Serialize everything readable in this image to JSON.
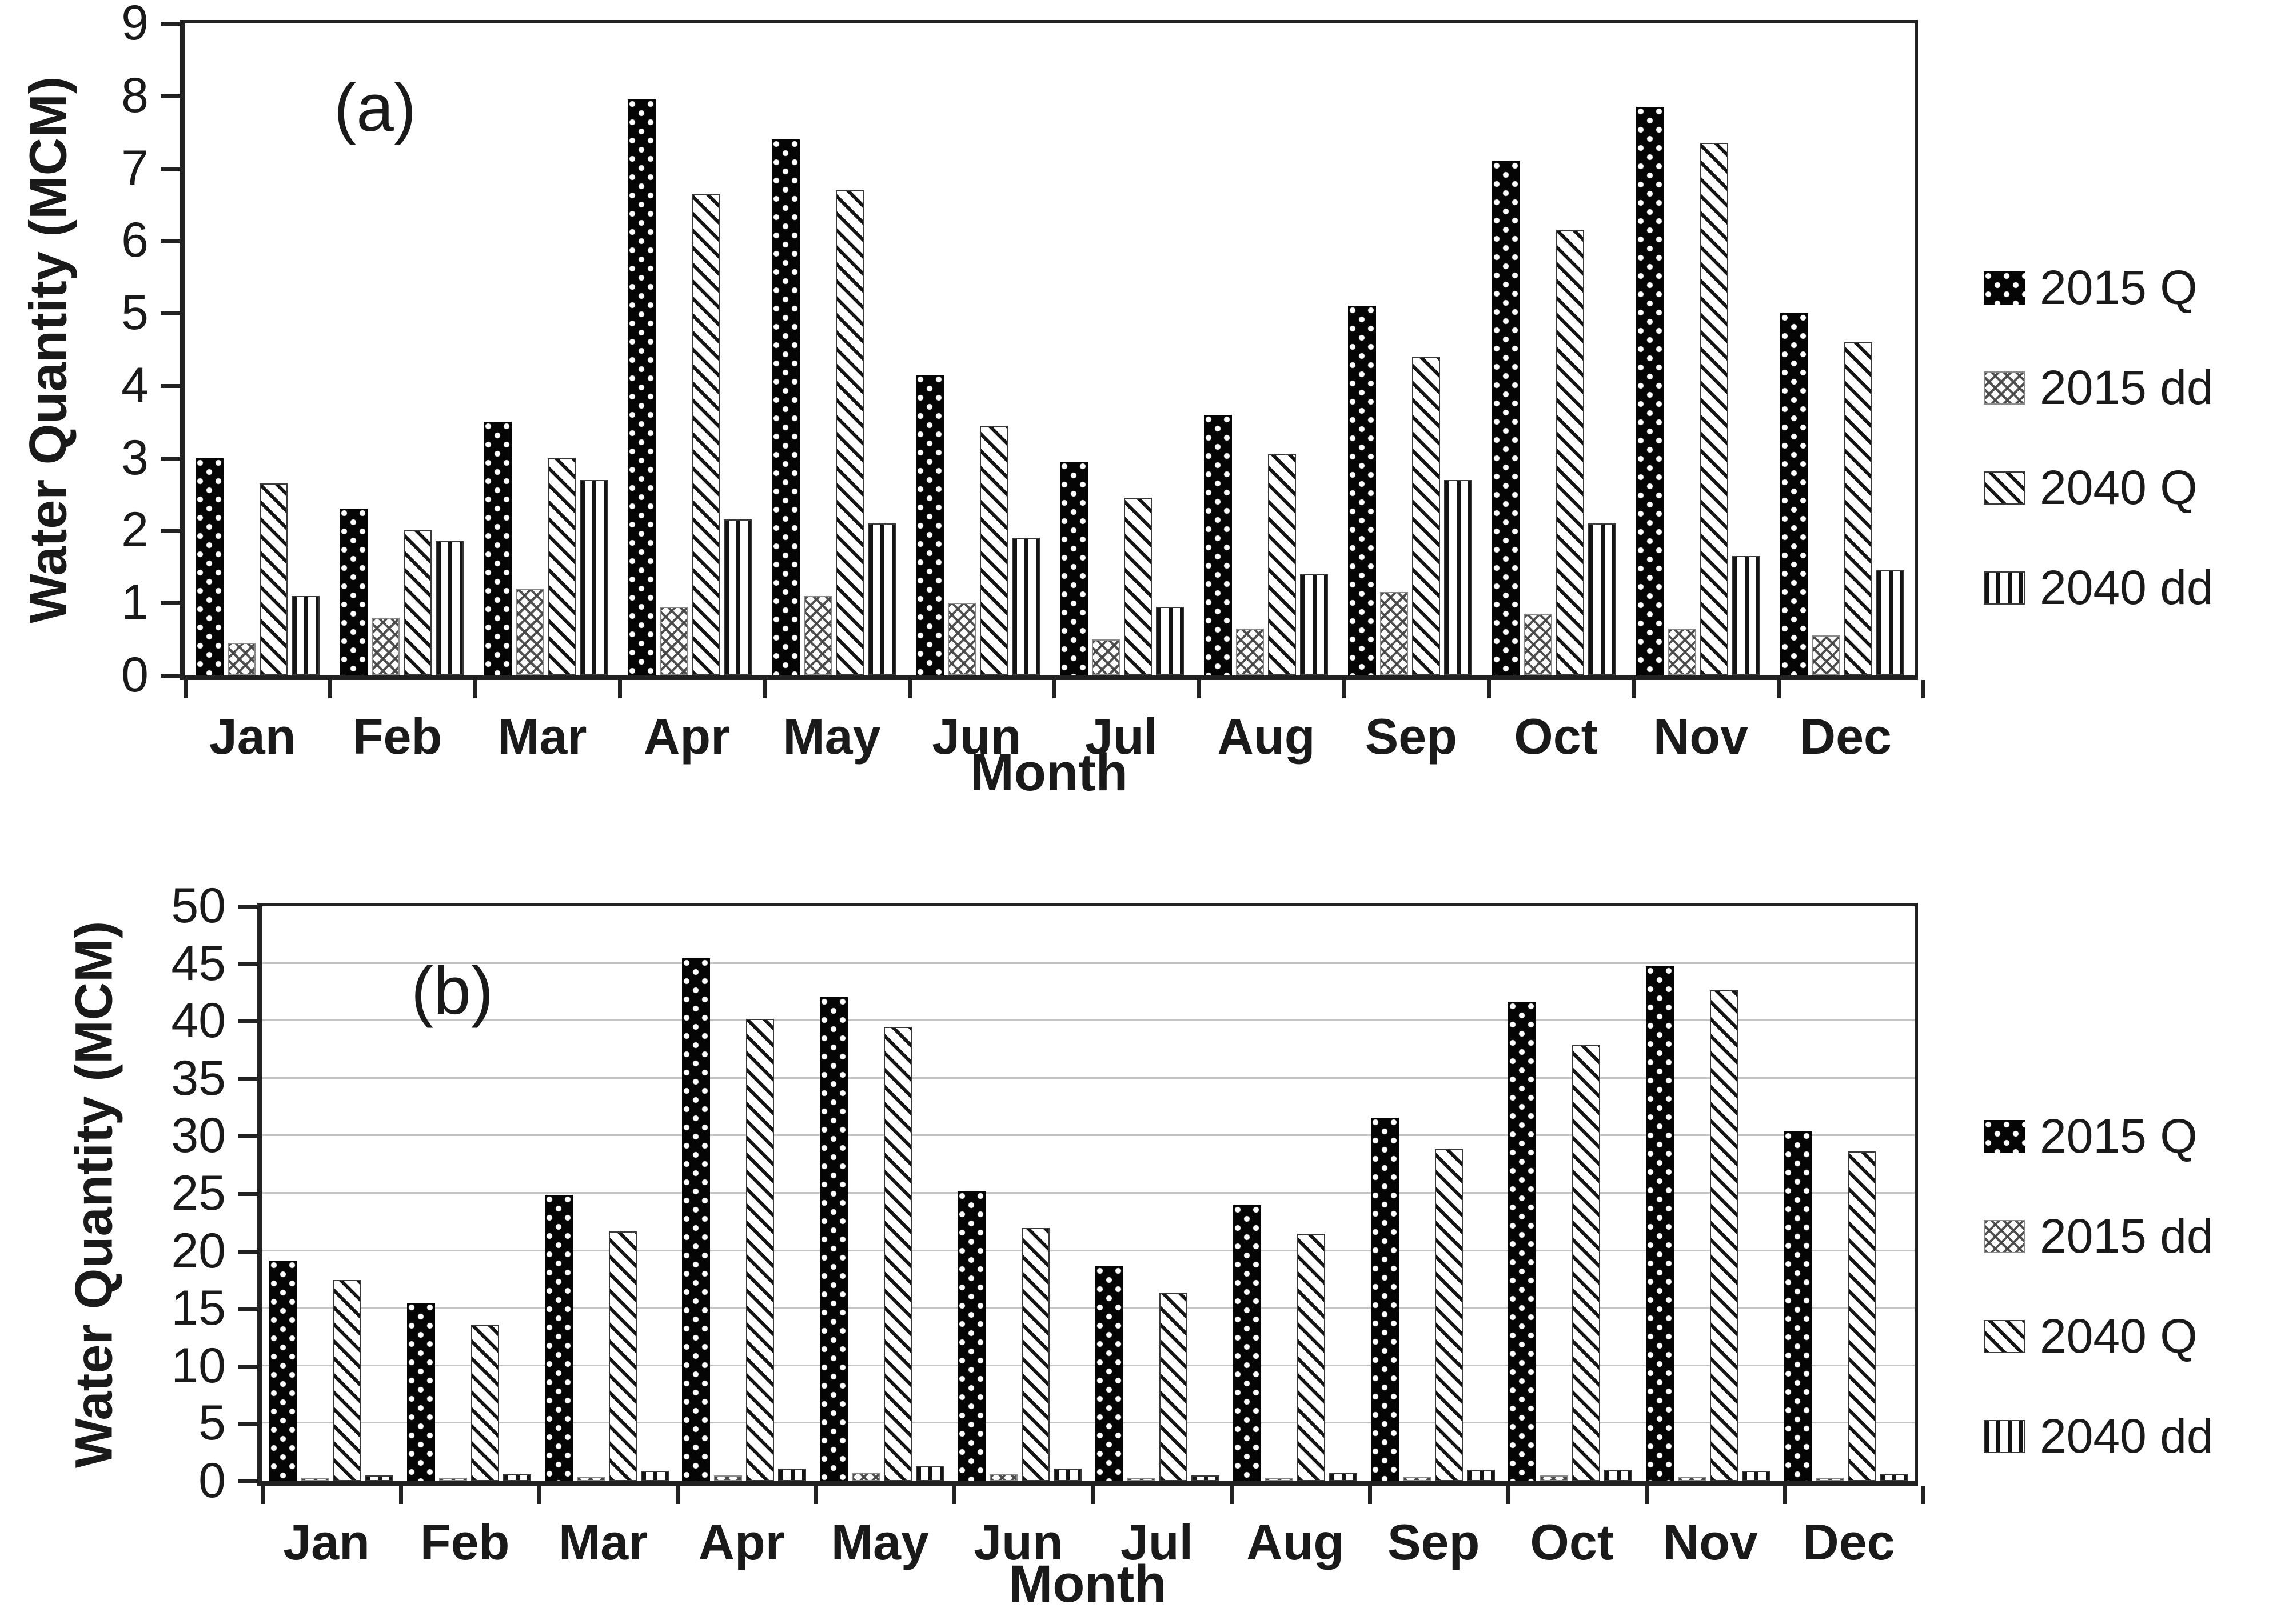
{
  "chart_data": [
    {
      "type": "bar",
      "panel_label": "(a)",
      "xlabel": "Month",
      "ylabel": "Water Quantity (MCM)",
      "ylim": [
        0,
        9
      ],
      "ytick_step": 1,
      "grid": false,
      "legend_position": "right",
      "categories": [
        "Jan",
        "Feb",
        "Mar",
        "Apr",
        "May",
        "Jun",
        "Jul",
        "Aug",
        "Sep",
        "Oct",
        "Nov",
        "Dec"
      ],
      "series": [
        {
          "name": "2015 Q",
          "pattern": "black-with-white-dots",
          "values": [
            3.0,
            2.3,
            3.5,
            7.95,
            7.4,
            4.15,
            2.95,
            3.6,
            5.1,
            7.1,
            7.85,
            5.0
          ]
        },
        {
          "name": "2015 dd",
          "pattern": "gray-crosshatch",
          "values": [
            0.45,
            0.8,
            1.2,
            0.95,
            1.1,
            1.0,
            0.5,
            0.65,
            1.15,
            0.85,
            0.65,
            0.55
          ]
        },
        {
          "name": "2040 Q",
          "pattern": "diagonal-stripes",
          "values": [
            2.65,
            2.0,
            3.0,
            6.65,
            6.7,
            3.45,
            2.45,
            3.05,
            4.4,
            6.15,
            7.35,
            4.6
          ]
        },
        {
          "name": "2040 dd",
          "pattern": "vertical-stripes",
          "values": [
            1.1,
            1.85,
            2.7,
            2.15,
            2.1,
            1.9,
            0.95,
            1.4,
            2.7,
            2.1,
            1.65,
            1.45
          ]
        }
      ]
    },
    {
      "type": "bar",
      "panel_label": "(b)",
      "xlabel": "Month",
      "ylabel": "Water Quantity (MCM)",
      "ylim": [
        0,
        50
      ],
      "ytick_step": 5,
      "grid": true,
      "legend_position": "right",
      "categories": [
        "Jan",
        "Feb",
        "Mar",
        "Apr",
        "May",
        "Jun",
        "Jul",
        "Aug",
        "Sep",
        "Oct",
        "Nov",
        "Dec"
      ],
      "series": [
        {
          "name": "2015 Q",
          "pattern": "black-with-white-dots",
          "values": [
            19.2,
            15.5,
            24.9,
            45.5,
            42.1,
            25.2,
            18.7,
            24.0,
            31.6,
            41.7,
            44.8,
            30.4
          ]
        },
        {
          "name": "2015 dd",
          "pattern": "gray-crosshatch",
          "values": [
            0.3,
            0.3,
            0.4,
            0.5,
            0.7,
            0.6,
            0.3,
            0.3,
            0.4,
            0.5,
            0.4,
            0.3
          ]
        },
        {
          "name": "2040 Q",
          "pattern": "diagonal-stripes",
          "values": [
            17.5,
            13.6,
            21.7,
            40.2,
            39.5,
            22.0,
            16.4,
            21.5,
            28.9,
            37.9,
            42.7,
            28.7
          ]
        },
        {
          "name": "2040 dd",
          "pattern": "vertical-stripes",
          "values": [
            0.5,
            0.6,
            0.9,
            1.1,
            1.3,
            1.1,
            0.5,
            0.7,
            1.0,
            1.0,
            0.9,
            0.6
          ]
        }
      ]
    }
  ]
}
